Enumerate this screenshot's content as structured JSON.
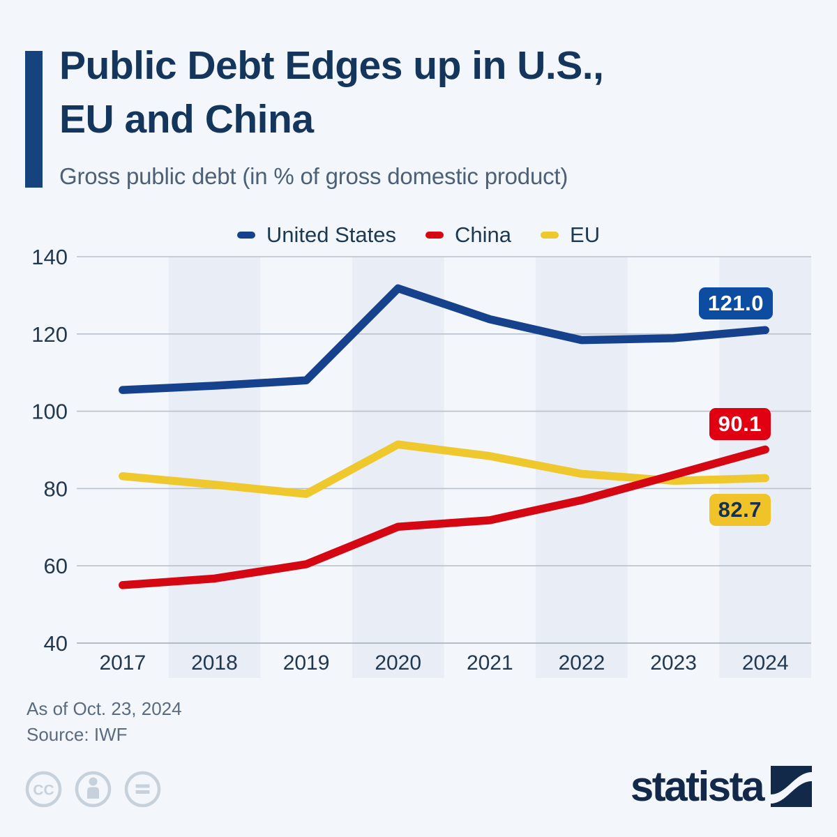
{
  "header": {
    "title_lines": [
      "Public Debt Edges up in U.S.,",
      "EU and China"
    ],
    "subtitle": "Gross public debt (in % of gross domestic product)",
    "accent_color": "#16437e"
  },
  "chart_data": {
    "type": "line",
    "title": "Public Debt Edges up in U.S., EU and China",
    "subtitle": "Gross public debt (in % of gross domestic product)",
    "categories": [
      "2017",
      "2018",
      "2019",
      "2020",
      "2021",
      "2022",
      "2023",
      "2024"
    ],
    "series": [
      {
        "name": "United States",
        "color": "#16418c",
        "badge_color": "#0c4da2",
        "badge_text_color": "#ffffff",
        "values": [
          105.5,
          106.6,
          108.0,
          131.8,
          123.8,
          118.4,
          118.9,
          121.0
        ],
        "end_label": "121.0"
      },
      {
        "name": "China",
        "color": "#d40712",
        "badge_color": "#e00012",
        "badge_text_color": "#ffffff",
        "values": [
          55.0,
          56.7,
          60.4,
          70.1,
          71.8,
          77.0,
          83.5,
          90.1
        ],
        "end_label": "90.1"
      },
      {
        "name": "EU",
        "color": "#eec82d",
        "badge_color": "#f0c428",
        "badge_text_color": "#163050",
        "values": [
          83.2,
          81.0,
          78.6,
          91.4,
          88.4,
          83.8,
          82.0,
          82.7
        ],
        "end_label": "82.7"
      }
    ],
    "ylim": [
      40,
      140
    ],
    "yticks": [
      140,
      120,
      100,
      80,
      60,
      40
    ],
    "grid": "horizontal",
    "legend_position": "top",
    "band_years": [
      "2018",
      "2020",
      "2022",
      "2024"
    ],
    "band_color": "#e9edf6",
    "background_color": "#f3f6fa"
  },
  "footer": {
    "as_of": "As of Oct. 23, 2024",
    "source": "Source: IWF"
  },
  "branding": {
    "logo_text": "statista",
    "logo_color": "#13294a"
  },
  "license": {
    "icons": [
      "cc-icon",
      "attribution-icon",
      "no-derivatives-icon"
    ]
  }
}
